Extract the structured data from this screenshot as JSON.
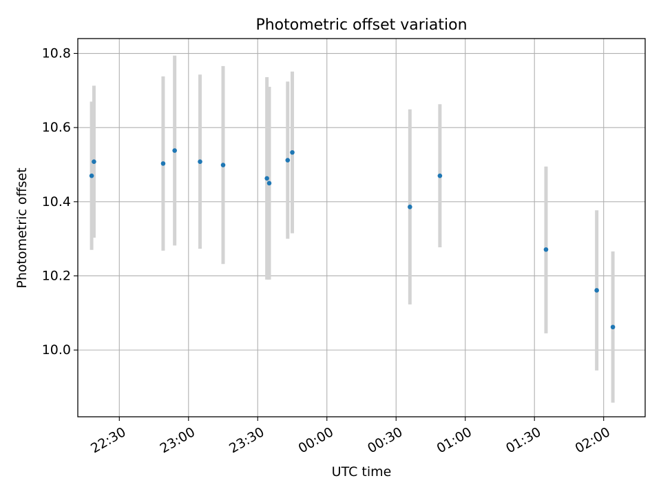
{
  "chart_data": {
    "type": "scatter",
    "title": "Photometric offset variation",
    "xlabel": "UTC time",
    "ylabel": "Photometric offset",
    "x_axis_type": "time",
    "xlim": [
      "22:12",
      "02:18"
    ],
    "ylim": [
      9.82,
      10.84
    ],
    "x_ticks": [
      "22:30",
      "23:00",
      "23:30",
      "00:00",
      "00:30",
      "01:00",
      "01:30",
      "02:00"
    ],
    "y_ticks": [
      10.0,
      10.2,
      10.4,
      10.6,
      10.8
    ],
    "y_tick_labels": [
      "10.0",
      "10.2",
      "10.4",
      "10.6",
      "10.8"
    ],
    "grid": true,
    "marker_color": "#1f77b4",
    "errorbar_color": "#d3d3d3",
    "points": [
      {
        "time": "22:18",
        "y": 10.47,
        "err_low": 10.27,
        "err_high": 10.67
      },
      {
        "time": "22:19",
        "y": 10.508,
        "err_low": 10.303,
        "err_high": 10.713
      },
      {
        "time": "22:49",
        "y": 10.503,
        "err_low": 10.268,
        "err_high": 10.738
      },
      {
        "time": "22:54",
        "y": 10.538,
        "err_low": 10.282,
        "err_high": 10.794
      },
      {
        "time": "23:05",
        "y": 10.508,
        "err_low": 10.273,
        "err_high": 10.743
      },
      {
        "time": "23:15",
        "y": 10.499,
        "err_low": 10.232,
        "err_high": 10.766
      },
      {
        "time": "23:34",
        "y": 10.463,
        "err_low": 10.19,
        "err_high": 10.736
      },
      {
        "time": "23:35",
        "y": 10.45,
        "err_low": 10.19,
        "err_high": 10.71
      },
      {
        "time": "23:43",
        "y": 10.512,
        "err_low": 10.3,
        "err_high": 10.724
      },
      {
        "time": "23:45",
        "y": 10.533,
        "err_low": 10.315,
        "err_high": 10.751
      },
      {
        "time": "00:36",
        "y": 10.386,
        "err_low": 10.123,
        "err_high": 10.649
      },
      {
        "time": "00:49",
        "y": 10.47,
        "err_low": 10.277,
        "err_high": 10.663
      },
      {
        "time": "01:35",
        "y": 10.271,
        "err_low": 10.045,
        "err_high": 10.495
      },
      {
        "time": "01:57",
        "y": 10.161,
        "err_low": 9.945,
        "err_high": 10.377
      },
      {
        "time": "02:04",
        "y": 10.062,
        "err_low": 9.858,
        "err_high": 10.266
      }
    ]
  }
}
